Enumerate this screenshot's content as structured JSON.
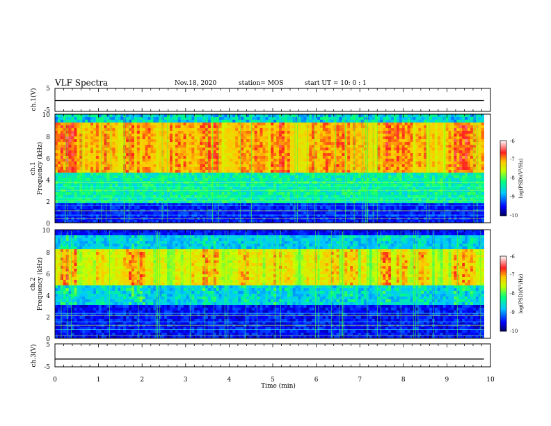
{
  "header": {
    "title": "VLF Spectra",
    "date": "Nov.18, 2020",
    "station": "station= MOS",
    "start_ut": "start  UT  =   10: 0  : 1"
  },
  "chart_data": [
    {
      "type": "line",
      "panel": "ch.1 waveform",
      "ylabel": "ch.1(V)",
      "ylim": [
        -5,
        5
      ],
      "yticks": [
        "5",
        "-5"
      ],
      "xlim": [
        0,
        10
      ],
      "series": [
        {
          "values_description_level": -0.3,
          "x": [
            0,
            9.85
          ],
          "y": [
            -0.3,
            -0.3
          ]
        }
      ]
    },
    {
      "type": "heatmap",
      "panel": "ch.1 spectrogram",
      "ylabel": "ch.1\nFrequency (kHz)",
      "ylim": [
        0,
        10
      ],
      "yticks": [
        "0",
        "2",
        "4",
        "6",
        "8",
        "10"
      ],
      "xlim": [
        0,
        10
      ],
      "data_extent_min": 9.85,
      "colorbar": {
        "label": "log(PSD)(V²/Hz)",
        "range": [
          -10,
          -6
        ],
        "ticks": [
          "-6",
          "-7",
          "-8",
          "-9",
          "-10"
        ]
      }
    },
    {
      "type": "heatmap",
      "panel": "ch.2 spectrogram",
      "ylabel": "ch.2\nFrequency (kHz)",
      "ylim": [
        0,
        10
      ],
      "yticks": [
        "0",
        "2",
        "4",
        "6",
        "8",
        "10"
      ],
      "xlim": [
        0,
        10
      ],
      "data_extent_min": 9.85,
      "colorbar": {
        "label": "log(PSD)(V²/Hz)",
        "range": [
          -10,
          -6
        ],
        "ticks": [
          "-6",
          "-7",
          "-8",
          "-9",
          "-10"
        ]
      }
    },
    {
      "type": "line",
      "panel": "ch.3 waveform",
      "ylabel": "ch.3(V)",
      "ylim": [
        -5,
        5
      ],
      "yticks": [
        "5",
        "-5"
      ],
      "xlim": [
        0,
        10
      ],
      "xlabel": "Time  (min)",
      "xticks": [
        "0",
        "1",
        "2",
        "3",
        "4",
        "5",
        "6",
        "7",
        "8",
        "9",
        "10"
      ],
      "series": [
        {
          "x": [
            0,
            9.85
          ],
          "y": [
            -1.6,
            -1.6
          ]
        }
      ]
    }
  ]
}
